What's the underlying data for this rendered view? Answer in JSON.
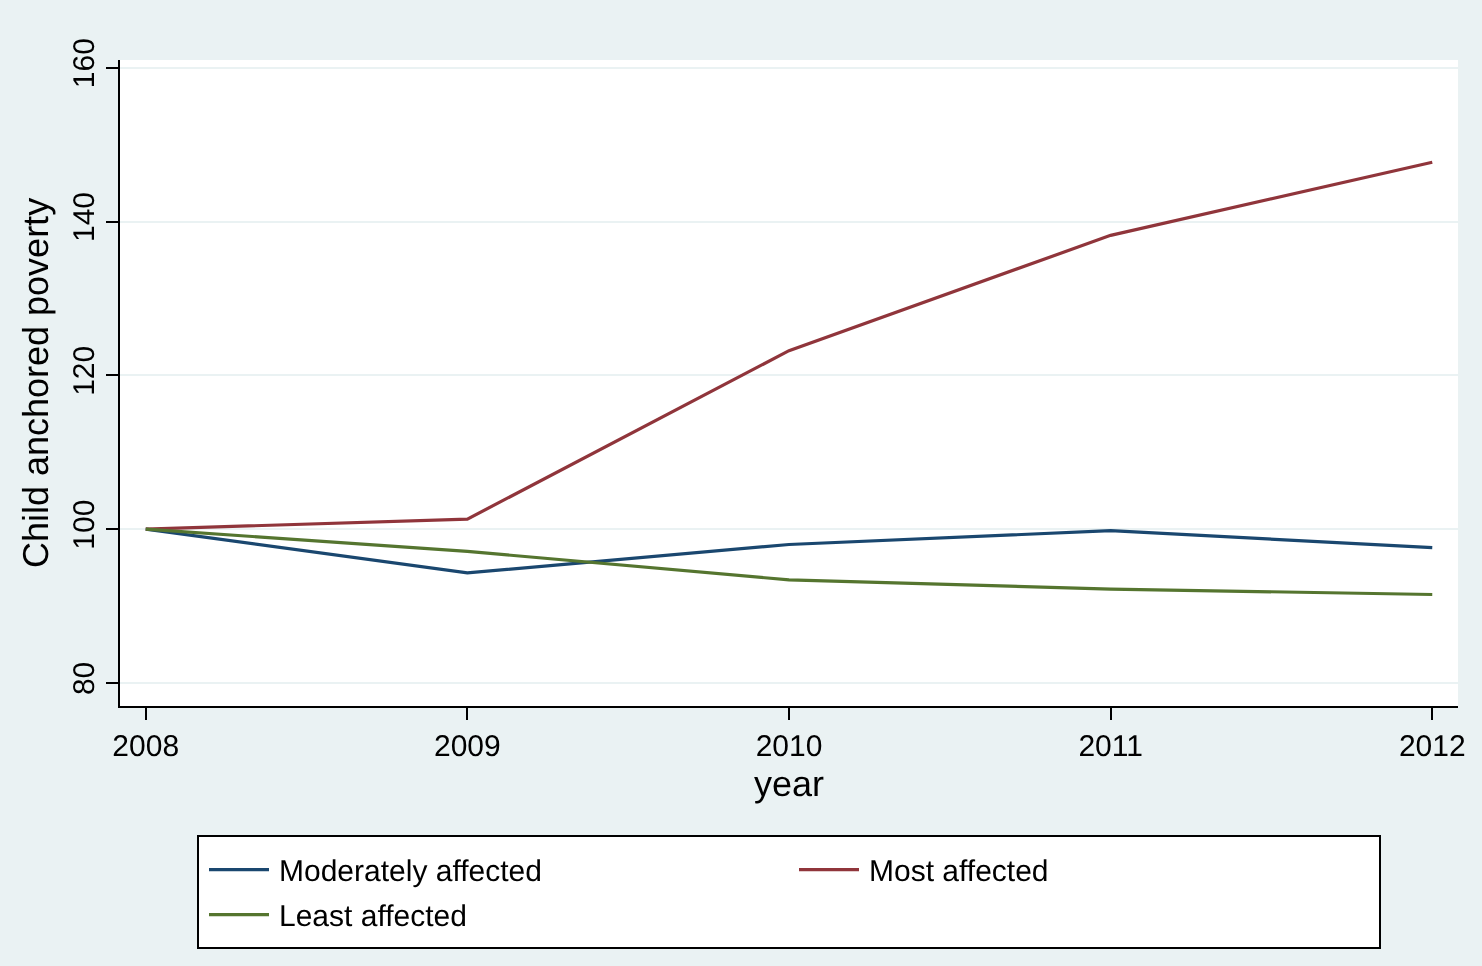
{
  "chart_data": {
    "type": "line",
    "xlabel": "year",
    "ylabel": "Child anchored poverty",
    "x": [
      2008,
      2009,
      2010,
      2011,
      2012
    ],
    "series": [
      {
        "name": "Moderately affected",
        "color": "#1a476f",
        "values": [
          100,
          94.3,
          98.0,
          99.8,
          97.6
        ]
      },
      {
        "name": "Most affected",
        "color": "#90353b",
        "values": [
          100,
          101.3,
          123.2,
          138.2,
          147.7
        ]
      },
      {
        "name": "Least affected",
        "color": "#55752f",
        "values": [
          100,
          97.1,
          93.4,
          92.2,
          91.5
        ]
      }
    ],
    "xlim": [
      2007.92,
      2012.08
    ],
    "xticks": [
      2008,
      2009,
      2010,
      2011,
      2012
    ],
    "ylim": [
      77,
      161
    ],
    "yticks": [
      80,
      100,
      120,
      140,
      160
    ],
    "grid": "y",
    "legend": "bottom",
    "marker": "none",
    "line_style": "solid"
  }
}
